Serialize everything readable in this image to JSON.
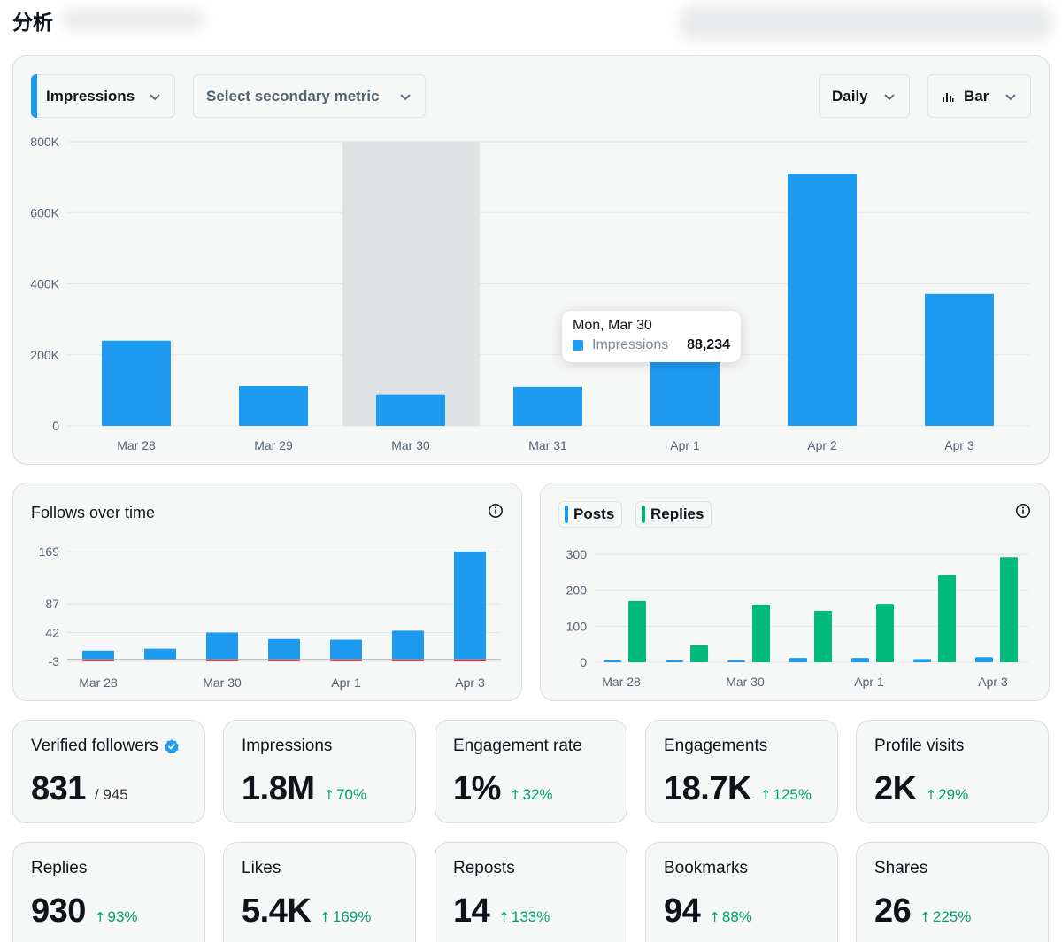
{
  "header": {
    "title": "分析"
  },
  "colors": {
    "impressions": "#1d9bf0",
    "replies": "#00ba7c",
    "negative": "#f4212e",
    "highlight": "#e1e2e4",
    "positive_text": "#00a36c"
  },
  "controls": {
    "primary_metric": "Impressions",
    "secondary_metric_placeholder": "Select secondary metric",
    "interval": "Daily",
    "chart_type": "Bar"
  },
  "tooltip": {
    "date": "Mon, Mar 30",
    "series": "Impressions",
    "value": "88,234"
  },
  "follows_card": {
    "title": "Follows over time"
  },
  "posts_card": {
    "legend_posts": "Posts",
    "legend_replies": "Replies"
  },
  "chart_data": [
    {
      "id": "impressions",
      "type": "bar",
      "categories": [
        "Mar 28",
        "Mar 29",
        "Mar 30",
        "Mar 31",
        "Apr 1",
        "Apr 2",
        "Apr 3"
      ],
      "series": [
        {
          "name": "Impressions",
          "values": [
            240000,
            112000,
            88234,
            110000,
            250000,
            710000,
            372000
          ]
        }
      ],
      "ylim": [
        0,
        800000
      ],
      "yticks": [
        0,
        200000,
        400000,
        600000,
        800000
      ],
      "ytick_labels": [
        "0",
        "200K",
        "400K",
        "600K",
        "800K"
      ],
      "highlight_category": "Mar 30"
    },
    {
      "id": "follows",
      "type": "bar",
      "title": "Follows over time",
      "categories": [
        "Mar 28",
        "Mar 29",
        "Mar 30",
        "Mar 31",
        "Apr 1",
        "Apr 2",
        "Apr 3"
      ],
      "x_tick_labels": [
        "Mar 28",
        "Mar 30",
        "Apr 1",
        "Apr 3"
      ],
      "series": [
        {
          "name": "Follows",
          "values": [
            14,
            17,
            42,
            32,
            31,
            45,
            169
          ]
        },
        {
          "name": "Unfollows",
          "values": [
            -1,
            0,
            -2,
            -1,
            -1,
            -1,
            -3
          ]
        }
      ],
      "ylim": [
        -3,
        169
      ],
      "yticks": [
        -3,
        42,
        87,
        169
      ],
      "ytick_labels": [
        "-3",
        "42",
        "87",
        "169"
      ]
    },
    {
      "id": "posts_replies",
      "type": "bar",
      "categories": [
        "Mar 28",
        "Mar 29",
        "Mar 30",
        "Mar 31",
        "Apr 1",
        "Apr 2",
        "Apr 3"
      ],
      "x_tick_labels": [
        "Mar 28",
        "Mar 30",
        "Apr 1",
        "Apr 3"
      ],
      "series": [
        {
          "name": "Posts",
          "values": [
            4,
            1,
            3,
            12,
            12,
            9,
            14
          ]
        },
        {
          "name": "Replies",
          "values": [
            170,
            47,
            160,
            143,
            162,
            242,
            292
          ]
        }
      ],
      "ylim": [
        0,
        300
      ],
      "yticks": [
        0,
        100,
        200,
        300
      ],
      "ytick_labels": [
        "0",
        "100",
        "200",
        "300"
      ]
    }
  ],
  "stats": [
    {
      "label": "Verified followers",
      "value": "831",
      "sub": "/ 945",
      "change": "",
      "verified": true
    },
    {
      "label": "Impressions",
      "value": "1.8M",
      "sub": "",
      "change": "70%"
    },
    {
      "label": "Engagement rate",
      "value": "1%",
      "sub": "",
      "change": "32%"
    },
    {
      "label": "Engagements",
      "value": "18.7K",
      "sub": "",
      "change": "125%"
    },
    {
      "label": "Profile visits",
      "value": "2K",
      "sub": "",
      "change": "29%"
    },
    {
      "label": "Replies",
      "value": "930",
      "sub": "",
      "change": "93%"
    },
    {
      "label": "Likes",
      "value": "5.4K",
      "sub": "",
      "change": "169%"
    },
    {
      "label": "Reposts",
      "value": "14",
      "sub": "",
      "change": "133%"
    },
    {
      "label": "Bookmarks",
      "value": "94",
      "sub": "",
      "change": "88%"
    },
    {
      "label": "Shares",
      "value": "26",
      "sub": "",
      "change": "225%"
    }
  ]
}
